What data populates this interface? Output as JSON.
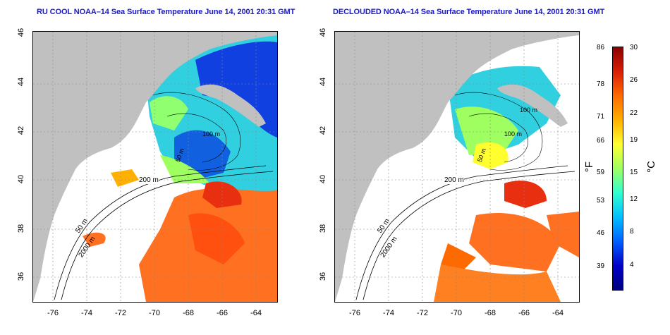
{
  "left_panel": {
    "title": "RU COOL NOAA–14 Sea Surface Temperature June 14, 2001 20:31 GMT"
  },
  "right_panel": {
    "title": "DECLOUDED NOAA–14 Sea Surface Temperature June 14, 2001 20:31 GMT"
  },
  "axes": {
    "x_ticks": [
      "-76",
      "-74",
      "-72",
      "-70",
      "-68",
      "-66",
      "-64"
    ],
    "y_ticks": [
      "46",
      "44",
      "42",
      "40",
      "38",
      "36"
    ]
  },
  "contour_labels": {
    "left": [
      "200 m",
      "50 m",
      "2000 m",
      "100 m",
      "50 m"
    ],
    "right": [
      "200 m",
      "50 m",
      "2000 m",
      "100 m",
      "100 m",
      "50 m"
    ]
  },
  "colorbar": {
    "fahrenheit_ticks": [
      "86",
      "78",
      "71",
      "66",
      "59",
      "53",
      "46",
      "39"
    ],
    "celsius_ticks": [
      "30",
      "26",
      "22",
      "19",
      "15",
      "12",
      "8",
      "4"
    ],
    "fahrenheit_unit": "°F",
    "celsius_unit": "°C",
    "colors": [
      "#8b0000",
      "#d81e05",
      "#ff6a00",
      "#ffb000",
      "#ffff30",
      "#a0ff60",
      "#30ffd0",
      "#00c0ff",
      "#0060ff",
      "#0000c8",
      "#000080"
    ]
  },
  "map_colors": {
    "land": "#c0c0c0",
    "ocean_cloud": "#ffffff",
    "warm": "#ff7020",
    "hot": "#e83010",
    "cool": "#30d0e0",
    "cold": "#1040e0",
    "mid": "#90ff70"
  }
}
